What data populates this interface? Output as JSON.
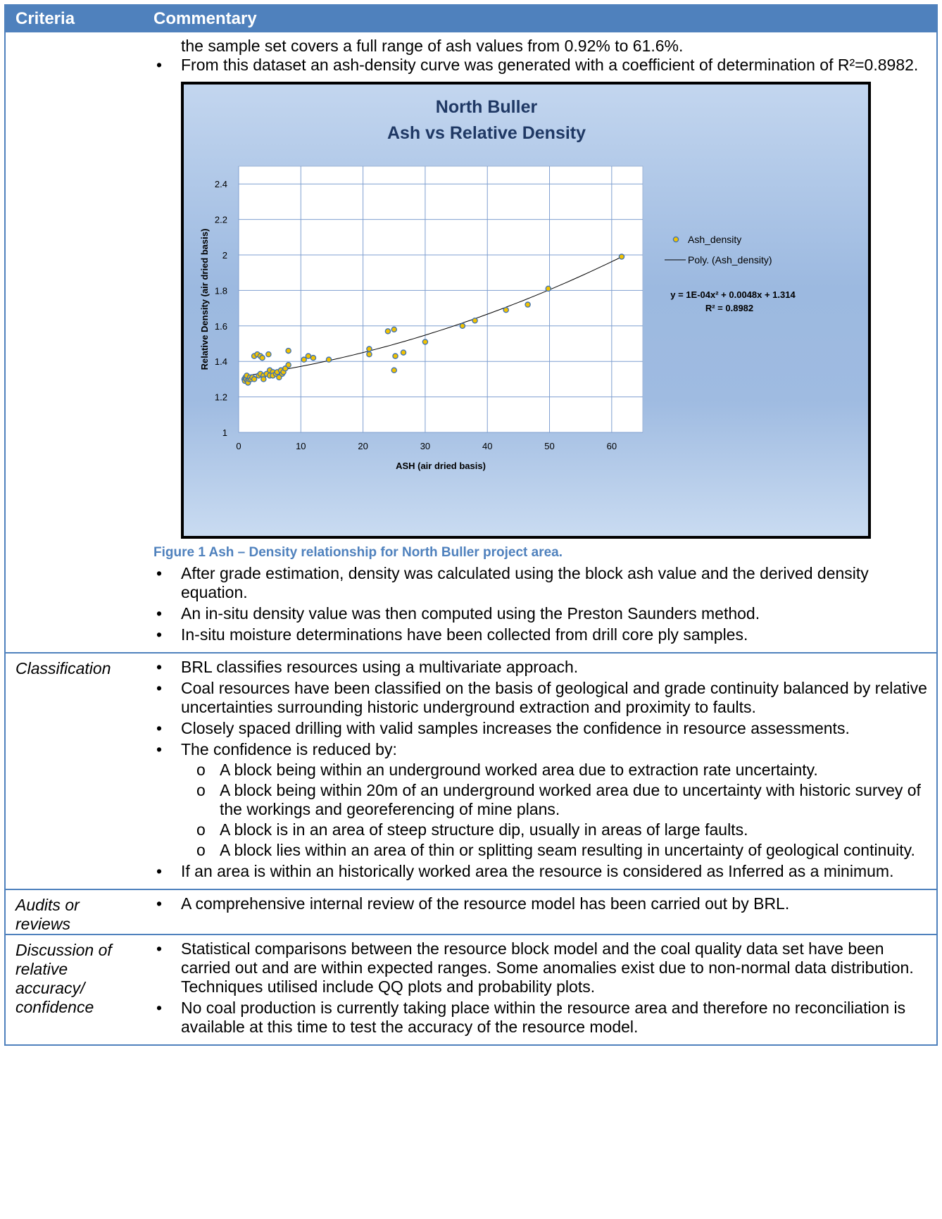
{
  "header": {
    "criteria": "Criteria",
    "commentary": "Commentary"
  },
  "density_section": {
    "continued_text": "the sample set covers a full range of ash values from 0.92% to 61.6%.",
    "bullet_curve": "From this dataset an ash-density curve was generated with a coefficient of determination of R²=0.8982.",
    "caption": "Figure 1 Ash – Density relationship for North Buller project area.",
    "bullets_after": [
      "After grade estimation, density was calculated using the block ash value and the derived density equation.",
      "An in-situ density value was then computed using the Preston Saunders method.",
      "In-situ moisture determinations have been collected from drill core ply samples."
    ]
  },
  "classification": {
    "criteria": "Classification",
    "bullets": [
      "BRL classifies resources using a multivariate approach.",
      "Coal resources have been classified on the basis of geological and grade continuity balanced by relative uncertainties surrounding historic underground extraction and proximity to faults.",
      "Closely spaced drilling with valid samples increases the confidence in resource assessments.",
      "The confidence is reduced by:"
    ],
    "sub_bullets": [
      "A block being within an underground worked area due to extraction rate uncertainty.",
      "A block being within 20m of an underground worked area due to uncertainty with historic survey of the workings and georeferencing of mine plans.",
      "A block is in an area of steep structure dip, usually in areas of large faults.",
      "A block lies within an area of thin or splitting seam resulting in uncertainty of geological continuity."
    ],
    "final_bullet": "If an area is within an historically worked area the resource is considered as Inferred as a minimum."
  },
  "audits": {
    "criteria_line1": "Audits or",
    "criteria_line2": "reviews",
    "bullets": [
      "A comprehensive internal review of the resource model has been carried out by BRL."
    ]
  },
  "discussion": {
    "criteria_lines": [
      "Discussion of",
      "relative",
      "accuracy/",
      "confidence"
    ],
    "bullets": [
      "Statistical comparisons between the resource block model and the coal quality data set have been carried out and are within expected ranges. Some anomalies exist due to non-normal data distribution. Techniques utilised include QQ plots and probability plots.",
      "No coal production is currently taking place within the resource area and therefore no reconciliation is available at this time to test the accuracy of the resource model."
    ]
  },
  "chart_data": {
    "type": "scatter",
    "title_line1": "North Buller",
    "title_line2": "Ash vs Relative Density",
    "xlabel": "ASH (air dried basis)",
    "ylabel": "Relative Density (air dried basis)",
    "xlim": [
      0,
      65
    ],
    "ylim": [
      1,
      2.5
    ],
    "xticks": [
      0,
      10,
      20,
      30,
      40,
      50,
      60
    ],
    "yticks": [
      1,
      1.2,
      1.4,
      1.6,
      1.8,
      2,
      2.2,
      2.4
    ],
    "ytick_labels": [
      "1",
      "1.2",
      "1.4",
      "1.6",
      "1.8",
      "2",
      "2.2",
      "2.4"
    ],
    "grid": true,
    "legend_position": "right",
    "series": [
      {
        "name": "Ash_density",
        "marker_color": "#f2c200",
        "marker_edge": "#3a6fb5",
        "points": [
          [
            0.92,
            1.3
          ],
          [
            1.0,
            1.29
          ],
          [
            1.1,
            1.31
          ],
          [
            1.2,
            1.3
          ],
          [
            1.3,
            1.32
          ],
          [
            1.4,
            1.29
          ],
          [
            1.5,
            1.28
          ],
          [
            1.7,
            1.3
          ],
          [
            1.8,
            1.31
          ],
          [
            2.0,
            1.3
          ],
          [
            2.2,
            1.31
          ],
          [
            2.5,
            1.3
          ],
          [
            2.5,
            1.43
          ],
          [
            3.0,
            1.44
          ],
          [
            3.2,
            1.32
          ],
          [
            3.5,
            1.43
          ],
          [
            3.5,
            1.33
          ],
          [
            3.8,
            1.42
          ],
          [
            4.0,
            1.32
          ],
          [
            4.0,
            1.3
          ],
          [
            4.5,
            1.33
          ],
          [
            4.8,
            1.44
          ],
          [
            5.0,
            1.35
          ],
          [
            5.0,
            1.32
          ],
          [
            5.5,
            1.34
          ],
          [
            5.5,
            1.32
          ],
          [
            6.0,
            1.33
          ],
          [
            6.2,
            1.34
          ],
          [
            6.5,
            1.31
          ],
          [
            6.8,
            1.35
          ],
          [
            7.0,
            1.33
          ],
          [
            7.2,
            1.34
          ],
          [
            7.5,
            1.36
          ],
          [
            8.0,
            1.38
          ],
          [
            8.0,
            1.46
          ],
          [
            10.5,
            1.41
          ],
          [
            11.2,
            1.43
          ],
          [
            12.0,
            1.42
          ],
          [
            14.5,
            1.41
          ],
          [
            21.0,
            1.47
          ],
          [
            21.0,
            1.44
          ],
          [
            24.0,
            1.57
          ],
          [
            25.0,
            1.58
          ],
          [
            25.0,
            1.35
          ],
          [
            25.2,
            1.43
          ],
          [
            26.5,
            1.45
          ],
          [
            30.0,
            1.51
          ],
          [
            36.0,
            1.6
          ],
          [
            38.0,
            1.63
          ],
          [
            43.0,
            1.69
          ],
          [
            46.5,
            1.72
          ],
          [
            49.8,
            1.81
          ],
          [
            61.6,
            1.99
          ]
        ]
      },
      {
        "name": "Poly. (Ash_density)",
        "type": "poly_trendline",
        "coefficients": [
          0.0001,
          0.0048,
          1.314
        ],
        "x_range": [
          0.92,
          61.6
        ]
      }
    ],
    "equation_text": "y = 1E-04x² + 0.0048x + 1.314",
    "r2_text": "R² = 0.8982"
  }
}
